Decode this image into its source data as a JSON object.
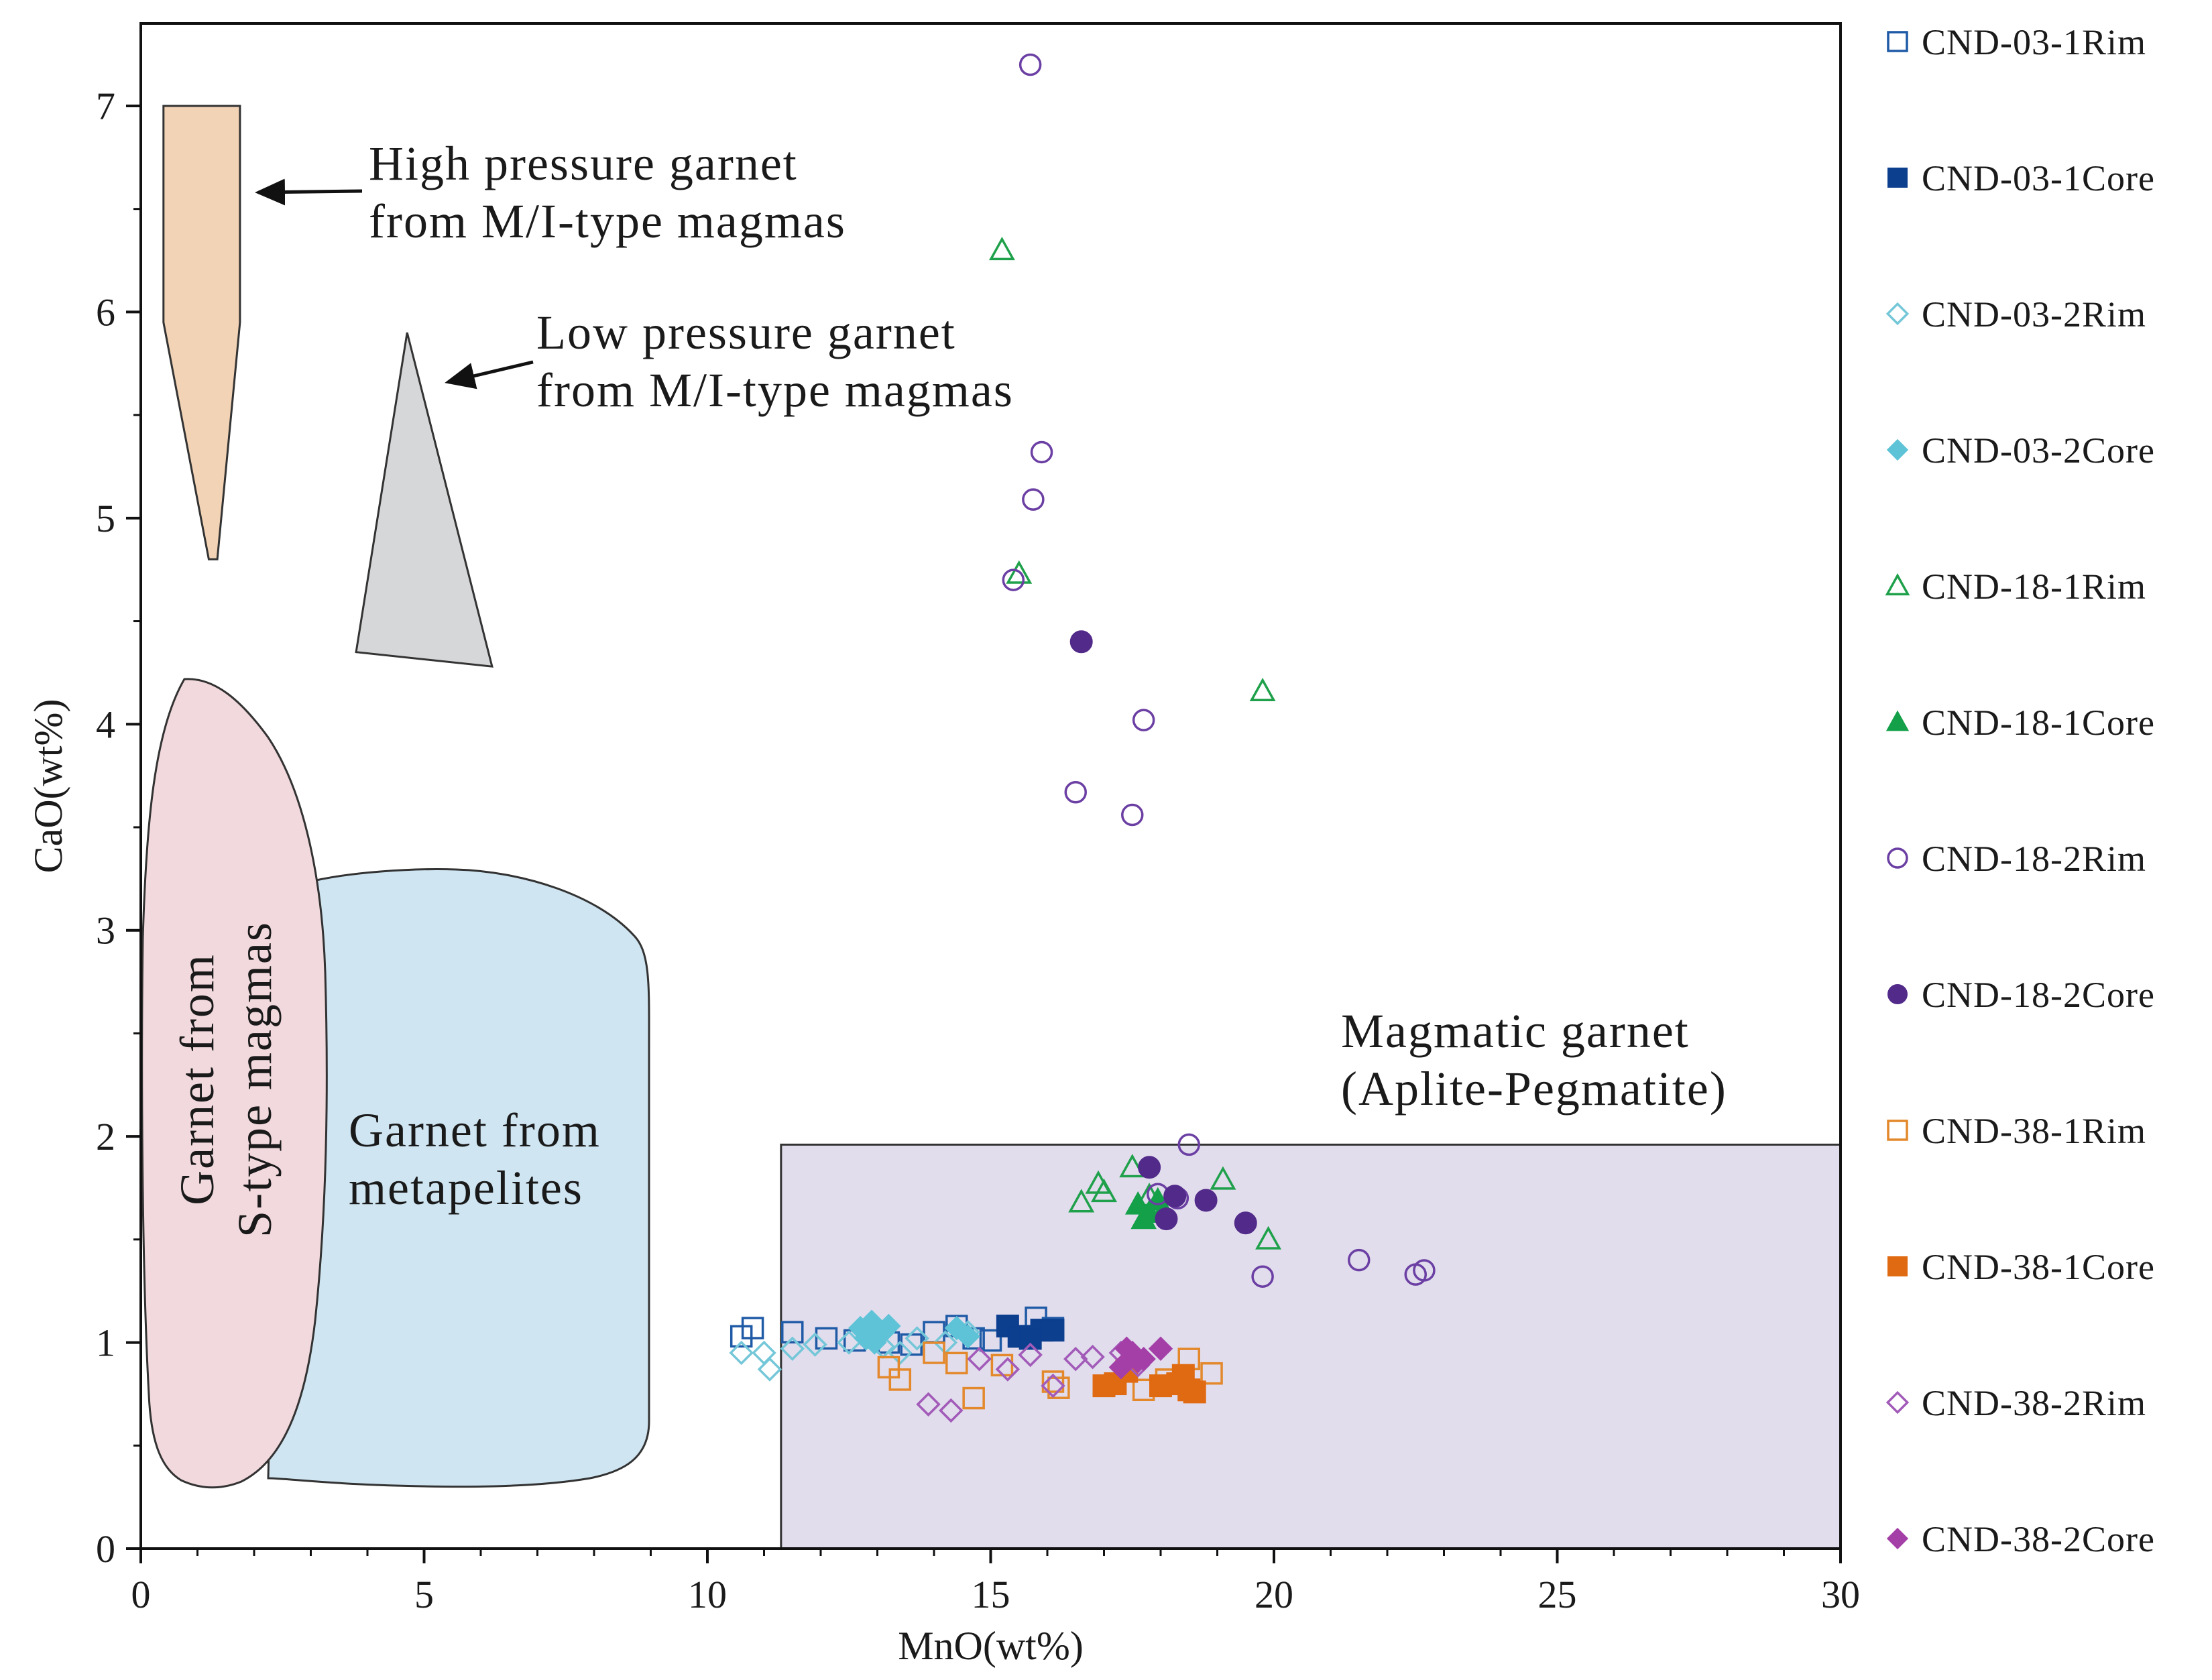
{
  "chart_data": {
    "type": "scatter",
    "xlabel": "MnO(wt%)",
    "ylabel": "CaO(wt%)",
    "xlim": [
      0,
      30
    ],
    "ylim": [
      0,
      7.4
    ],
    "xticks": [
      0,
      5,
      10,
      15,
      20,
      25,
      30
    ],
    "yticks": [
      0,
      1,
      2,
      3,
      4,
      5,
      6,
      7
    ],
    "grid": false,
    "legend_position": "right-outside",
    "regions": [
      {
        "id": "high-pressure",
        "fill": "#f2d3b5",
        "polygon": [
          [
            0.4,
            7.0
          ],
          [
            1.75,
            7.0
          ],
          [
            1.75,
            5.95
          ],
          [
            1.35,
            4.8
          ],
          [
            1.2,
            4.8
          ],
          [
            0.4,
            5.95
          ]
        ],
        "label_lines": [
          "High pressure garnet",
          "from M/I-type magmas"
        ]
      },
      {
        "id": "low-pressure",
        "fill": "#d6d7d9",
        "polygon": [
          [
            4.7,
            5.9
          ],
          [
            6.2,
            4.28
          ],
          [
            3.8,
            4.35
          ]
        ],
        "label_lines": [
          "Low pressure garnet",
          "from M/I-type magmas"
        ]
      },
      {
        "id": "metapelites",
        "fill": "#cfe5f2",
        "label_lines": [
          "Garnet from",
          "metapelites"
        ]
      },
      {
        "id": "s-type",
        "fill": "#f2d9dd",
        "label_lines": [
          "Garnet from",
          "S-type magmas"
        ]
      },
      {
        "id": "magmatic",
        "fill": "#e1dded",
        "rect": {
          "x0": 11.3,
          "x1": 30,
          "y0": 0,
          "y1": 1.96
        },
        "label_lines": [
          "Magmatic garnet",
          "(Aplite-Pegmatite)"
        ]
      }
    ],
    "series": [
      {
        "name": "CND-03-1Rim",
        "marker": "square",
        "filled": false,
        "color": "#1f5aa6",
        "points": [
          [
            10.6,
            1.03
          ],
          [
            10.8,
            1.07
          ],
          [
            11.5,
            1.05
          ],
          [
            12.1,
            1.02
          ],
          [
            12.6,
            1.01
          ],
          [
            12.9,
            1.04
          ],
          [
            13.2,
            1.0
          ],
          [
            13.6,
            0.99
          ],
          [
            14.0,
            1.05
          ],
          [
            14.4,
            1.08
          ],
          [
            14.7,
            1.02
          ],
          [
            15.0,
            1.01
          ],
          [
            15.8,
            1.12
          ],
          [
            16.1,
            1.07
          ]
        ]
      },
      {
        "name": "CND-03-1Core",
        "marker": "square",
        "filled": true,
        "color": "#0d3f8f",
        "points": [
          [
            15.3,
            1.08
          ],
          [
            15.5,
            1.03
          ],
          [
            15.9,
            1.06
          ],
          [
            16.1,
            1.06
          ],
          [
            15.7,
            1.02
          ]
        ]
      },
      {
        "name": "CND-03-2Rim",
        "marker": "diamond",
        "filled": false,
        "color": "#74c7d8",
        "points": [
          [
            10.6,
            0.95
          ],
          [
            11.0,
            0.95
          ],
          [
            11.1,
            0.87
          ],
          [
            11.5,
            0.97
          ],
          [
            11.9,
            0.99
          ],
          [
            12.5,
            1.0
          ],
          [
            13.1,
            0.98
          ],
          [
            13.4,
            0.95
          ],
          [
            13.7,
            1.02
          ],
          [
            14.2,
            1.0
          ],
          [
            14.6,
            1.05
          ]
        ]
      },
      {
        "name": "CND-03-2Core",
        "marker": "diamond",
        "filled": true,
        "color": "#5ec3d6",
        "points": [
          [
            12.7,
            1.07
          ],
          [
            12.9,
            1.1
          ],
          [
            13.1,
            1.05
          ],
          [
            12.8,
            1.02
          ],
          [
            13.2,
            1.08
          ],
          [
            12.95,
            1.0
          ],
          [
            14.4,
            1.07
          ],
          [
            14.6,
            1.03
          ]
        ]
      },
      {
        "name": "CND-18-1Rim",
        "marker": "triangle",
        "filled": false,
        "color": "#1fa04a",
        "points": [
          [
            15.2,
            6.3
          ],
          [
            15.5,
            4.73
          ],
          [
            19.8,
            4.16
          ],
          [
            16.6,
            1.68
          ],
          [
            16.9,
            1.77
          ],
          [
            17.0,
            1.73
          ],
          [
            17.5,
            1.85
          ],
          [
            17.8,
            1.71
          ],
          [
            19.1,
            1.79
          ],
          [
            19.9,
            1.5
          ]
        ]
      },
      {
        "name": "CND-18-1Core",
        "marker": "triangle",
        "filled": true,
        "color": "#13a048",
        "points": [
          [
            17.6,
            1.67
          ],
          [
            17.8,
            1.63
          ],
          [
            17.95,
            1.69
          ],
          [
            17.7,
            1.6
          ],
          [
            18.05,
            1.64
          ]
        ]
      },
      {
        "name": "CND-18-2Rim",
        "marker": "circle",
        "filled": false,
        "color": "#6b3fa3",
        "points": [
          [
            15.7,
            7.2
          ],
          [
            15.9,
            5.32
          ],
          [
            15.75,
            5.09
          ],
          [
            15.4,
            4.7
          ],
          [
            17.7,
            4.02
          ],
          [
            16.5,
            3.67
          ],
          [
            17.5,
            3.56
          ],
          [
            18.5,
            1.96
          ],
          [
            17.95,
            1.72
          ],
          [
            18.3,
            1.7
          ],
          [
            19.8,
            1.32
          ],
          [
            21.5,
            1.4
          ],
          [
            22.5,
            1.33
          ],
          [
            22.65,
            1.35
          ]
        ]
      },
      {
        "name": "CND-18-2Core",
        "marker": "circle",
        "filled": true,
        "color": "#522a8a",
        "points": [
          [
            16.6,
            4.4
          ],
          [
            17.8,
            1.85
          ],
          [
            18.1,
            1.6
          ],
          [
            18.25,
            1.71
          ],
          [
            18.8,
            1.69
          ],
          [
            19.5,
            1.58
          ]
        ]
      },
      {
        "name": "CND-38-1Rim",
        "marker": "square",
        "filled": false,
        "color": "#e3882b",
        "points": [
          [
            13.2,
            0.88
          ],
          [
            13.4,
            0.82
          ],
          [
            14.0,
            0.95
          ],
          [
            14.4,
            0.9
          ],
          [
            14.7,
            0.73
          ],
          [
            15.2,
            0.89
          ],
          [
            16.1,
            0.81
          ],
          [
            16.2,
            0.78
          ],
          [
            17.7,
            0.77
          ],
          [
            18.1,
            0.82
          ],
          [
            18.5,
            0.92
          ],
          [
            18.9,
            0.85
          ]
        ]
      },
      {
        "name": "CND-38-1Core",
        "marker": "square",
        "filled": true,
        "color": "#e06a12",
        "points": [
          [
            17.0,
            0.79
          ],
          [
            17.2,
            0.8
          ],
          [
            17.4,
            0.86
          ],
          [
            18.0,
            0.79
          ],
          [
            18.3,
            0.8
          ],
          [
            18.5,
            0.77
          ],
          [
            18.6,
            0.76
          ],
          [
            18.4,
            0.84
          ]
        ]
      },
      {
        "name": "CND-38-2Rim",
        "marker": "diamond",
        "filled": false,
        "color": "#a25bb8",
        "points": [
          [
            13.9,
            0.7
          ],
          [
            14.3,
            0.67
          ],
          [
            14.8,
            0.92
          ],
          [
            15.3,
            0.87
          ],
          [
            15.7,
            0.94
          ],
          [
            16.1,
            0.79
          ],
          [
            16.5,
            0.92
          ],
          [
            16.8,
            0.93
          ],
          [
            17.3,
            0.95
          ],
          [
            17.6,
            0.89
          ]
        ]
      },
      {
        "name": "CND-38-2Core",
        "marker": "diamond",
        "filled": true,
        "color": "#a43fa8",
        "points": [
          [
            17.3,
            0.88
          ],
          [
            17.5,
            0.95
          ],
          [
            17.6,
            0.91
          ],
          [
            17.7,
            0.92
          ],
          [
            17.4,
            0.97
          ],
          [
            18.0,
            0.97
          ]
        ]
      }
    ]
  }
}
